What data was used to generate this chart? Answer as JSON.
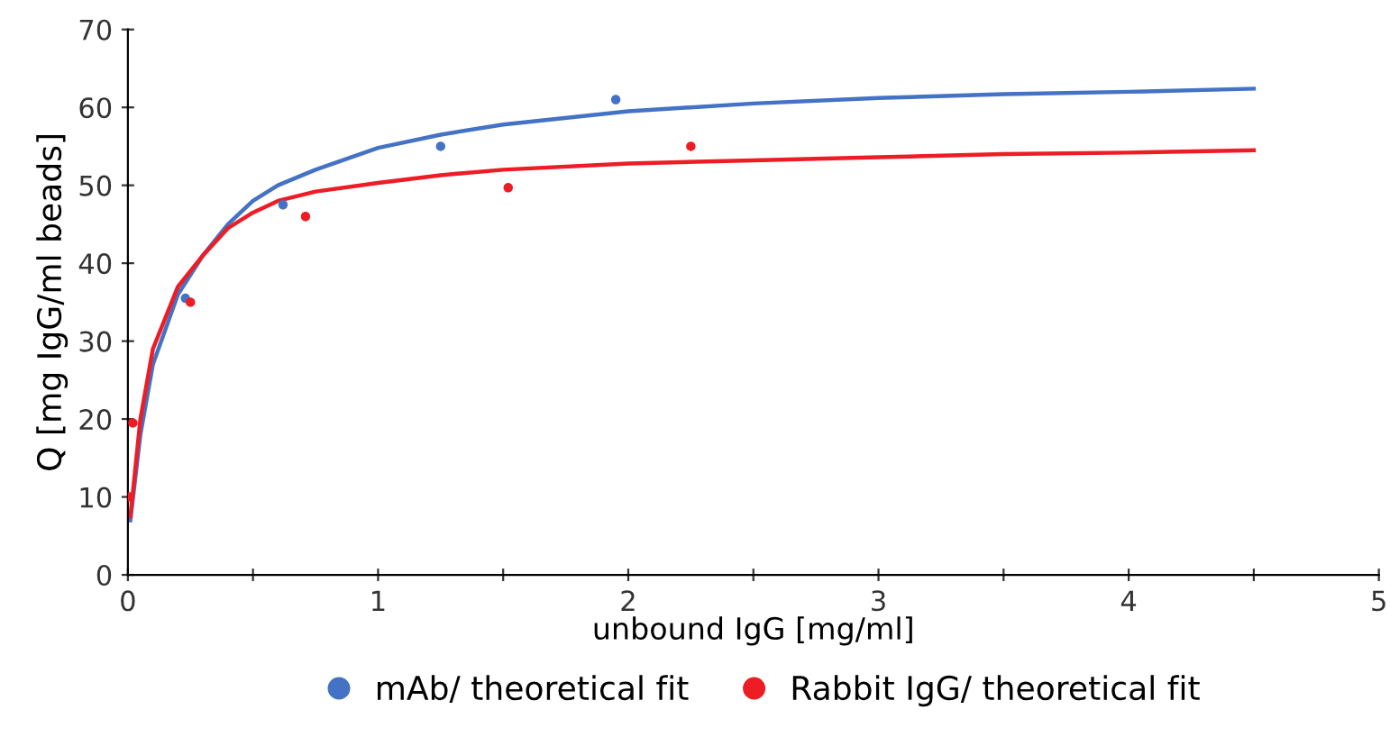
{
  "chart_data": {
    "type": "scatter",
    "xlabel": "unbound IgG [mg/ml]",
    "ylabel": "Q [mg IgG/ml beads]",
    "xlim": [
      0,
      5
    ],
    "ylim": [
      0,
      70
    ],
    "xticks": [
      0,
      {
        "value": 0.5,
        "label": null
      },
      1,
      {
        "value": 1.5,
        "label": null
      },
      2,
      {
        "value": 2.5,
        "label": null
      },
      3,
      {
        "value": 3.5,
        "label": null
      },
      4,
      {
        "value": 4.5,
        "label": null
      },
      5
    ],
    "yticks": [
      0,
      10,
      20,
      30,
      40,
      50,
      60,
      70
    ],
    "grid": false,
    "legend": "bottom",
    "series": [
      {
        "name": "mAb/ theoretical fit",
        "marker": "circle",
        "color": "#4472c4",
        "x": [
          0.23,
          0.62,
          1.25,
          1.95
        ],
        "values": [
          35.5,
          47.5,
          55,
          61
        ]
      },
      {
        "name": "Rabbit IgG/ theoretical fit",
        "marker": "circle",
        "color": "#ee1c25",
        "x": [
          0.005,
          0.02,
          0.25,
          0.71,
          1.52,
          2.25
        ],
        "values": [
          10,
          19.5,
          35,
          46,
          49.7,
          55
        ]
      },
      {
        "type": "line",
        "marker": "none",
        "color": "#4472c4",
        "x": [
          0.01,
          0.05,
          0.1,
          0.2,
          0.3,
          0.4,
          0.5,
          0.6,
          0.75,
          1.0,
          1.25,
          1.5,
          2.0,
          2.5,
          3.0,
          3.5,
          4.0,
          4.5
        ],
        "values": [
          7,
          18,
          27,
          36,
          41,
          45,
          48,
          50,
          52,
          54.8,
          56.5,
          57.8,
          59.5,
          60.5,
          61.2,
          61.7,
          62,
          62.4
        ]
      },
      {
        "type": "line",
        "marker": "none",
        "color": "#ee1c25",
        "x": [
          0.01,
          0.05,
          0.1,
          0.2,
          0.3,
          0.4,
          0.5,
          0.6,
          0.75,
          1.0,
          1.25,
          1.5,
          2.0,
          2.5,
          3.0,
          3.5,
          4.0,
          4.5
        ],
        "values": [
          7.5,
          20,
          29,
          37,
          41,
          44.5,
          46.5,
          48,
          49.2,
          50.3,
          51.3,
          52,
          52.8,
          53.2,
          53.6,
          54,
          54.2,
          54.5
        ]
      }
    ]
  }
}
